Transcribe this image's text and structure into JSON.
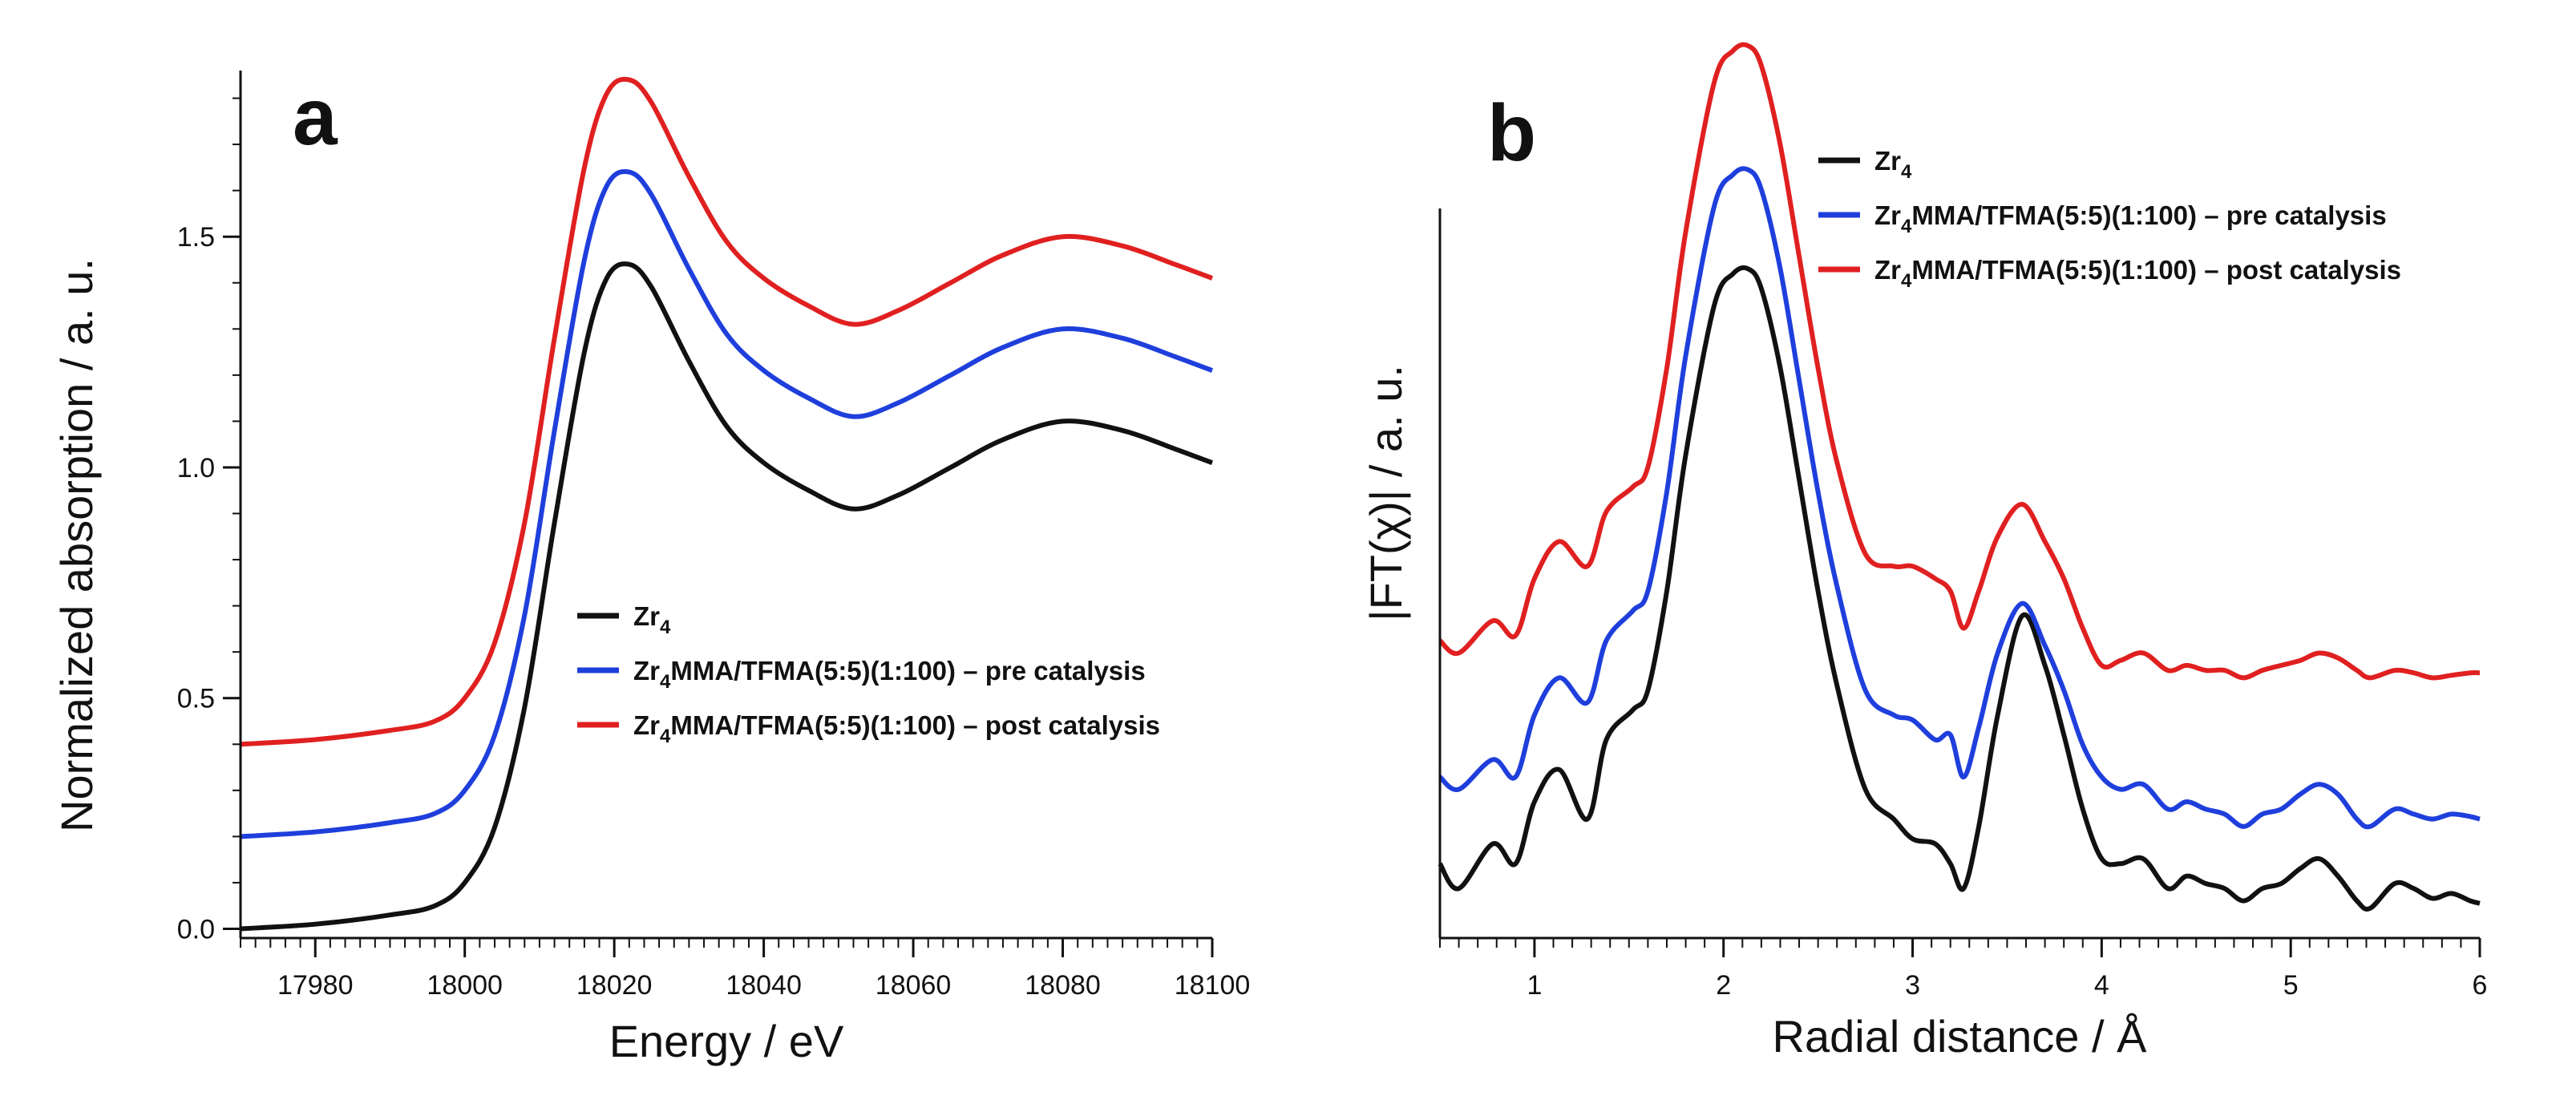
{
  "chart_data": [
    {
      "type": "line",
      "panel_label": "a",
      "xlabel": "Energy / eV",
      "ylabel": "Normalized absorption / a. u.",
      "xlim": [
        17970,
        18100
      ],
      "ylim": [
        -0.02,
        1.86
      ],
      "xticks": [
        17980,
        18000,
        18020,
        18040,
        18060,
        18080,
        18100
      ],
      "yticks": [
        0.0,
        0.5,
        1.0,
        1.5
      ],
      "ytick_labels": [
        "0.0",
        "0.5",
        "1.0",
        "1.5"
      ],
      "legend_position": "center-right",
      "series": [
        {
          "name": "Zr4",
          "label_main": "Zr",
          "label_sub": "4",
          "label_rest": "",
          "color": "#111111",
          "x": [
            17970,
            17980,
            17990,
            17996,
            18000,
            18004,
            18008,
            18012,
            18016,
            18019,
            18022,
            18025,
            18030,
            18035,
            18040,
            18046,
            18052,
            18058,
            18065,
            18072,
            18080,
            18088,
            18095,
            18100
          ],
          "y": [
            0.0,
            0.01,
            0.03,
            0.05,
            0.1,
            0.22,
            0.48,
            0.88,
            1.25,
            1.41,
            1.44,
            1.39,
            1.23,
            1.09,
            1.01,
            0.95,
            0.91,
            0.94,
            1.0,
            1.06,
            1.1,
            1.08,
            1.04,
            1.01
          ]
        },
        {
          "name": "Zr4MMA/TFMA(5:5)(1:100) – pre catalysis",
          "label_main": "Zr",
          "label_sub": "4",
          "label_rest": "MMA/TFMA(5:5)(1:100) – pre catalysis",
          "color": "#1f3fdc",
          "x": [
            17970,
            17980,
            17990,
            17996,
            18000,
            18004,
            18008,
            18012,
            18016,
            18019,
            18022,
            18025,
            18030,
            18035,
            18040,
            18046,
            18052,
            18058,
            18065,
            18072,
            18080,
            18088,
            18095,
            18100
          ],
          "y": [
            0.2,
            0.21,
            0.23,
            0.25,
            0.3,
            0.42,
            0.68,
            1.08,
            1.45,
            1.61,
            1.64,
            1.59,
            1.43,
            1.29,
            1.21,
            1.15,
            1.11,
            1.14,
            1.2,
            1.26,
            1.3,
            1.28,
            1.24,
            1.21
          ]
        },
        {
          "name": "Zr4MMA/TFMA(5:5)(1:100) – post catalysis",
          "label_main": "Zr",
          "label_sub": "4",
          "label_rest": "MMA/TFMA(5:5)(1:100) – post catalysis",
          "color": "#e02020",
          "x": [
            17970,
            17980,
            17990,
            17996,
            18000,
            18004,
            18008,
            18012,
            18016,
            18019,
            18022,
            18025,
            18030,
            18035,
            18040,
            18046,
            18052,
            18058,
            18065,
            18072,
            18080,
            18088,
            18095,
            18100
          ],
          "y": [
            0.4,
            0.41,
            0.43,
            0.45,
            0.5,
            0.62,
            0.88,
            1.28,
            1.65,
            1.81,
            1.84,
            1.79,
            1.63,
            1.49,
            1.41,
            1.35,
            1.31,
            1.34,
            1.4,
            1.46,
            1.5,
            1.48,
            1.44,
            1.41
          ]
        }
      ]
    },
    {
      "type": "line",
      "panel_label": "b",
      "xlabel": "Radial distance / Å",
      "ylabel": "|FT(χ)| / a. u.",
      "xlim": [
        0.5,
        6.0
      ],
      "ylim": [
        -0.1,
        3.4
      ],
      "xticks": [
        1,
        2,
        3,
        4,
        5,
        6
      ],
      "xtick_labels": [
        "1",
        "2",
        "3",
        "4",
        "5",
        "6"
      ],
      "legend_position": "top-right",
      "series": [
        {
          "name": "Zr4",
          "label_main": "Zr",
          "label_sub": "4",
          "label_rest": "",
          "color": "#111111",
          "x": [
            0.5,
            0.6,
            0.78,
            0.9,
            1.0,
            1.13,
            1.28,
            1.38,
            1.52,
            1.6,
            1.7,
            1.8,
            1.95,
            2.05,
            2.13,
            2.2,
            2.3,
            2.4,
            2.5,
            2.6,
            2.75,
            2.9,
            3.0,
            3.12,
            3.2,
            3.27,
            3.35,
            3.45,
            3.58,
            3.7,
            3.8,
            3.9,
            4.0,
            4.1,
            4.22,
            4.35,
            4.45,
            4.55,
            4.65,
            4.75,
            4.85,
            4.95,
            5.05,
            5.15,
            5.25,
            5.35,
            5.42,
            5.55,
            5.65,
            5.75,
            5.85,
            5.95,
            6.0
          ],
          "y": [
            0.2,
            0.1,
            0.28,
            0.2,
            0.45,
            0.58,
            0.38,
            0.7,
            0.82,
            0.9,
            1.3,
            1.85,
            2.45,
            2.58,
            2.6,
            2.52,
            2.2,
            1.75,
            1.3,
            0.92,
            0.5,
            0.38,
            0.3,
            0.28,
            0.2,
            0.1,
            0.35,
            0.8,
            1.2,
            1.0,
            0.72,
            0.42,
            0.22,
            0.2,
            0.22,
            0.1,
            0.15,
            0.12,
            0.1,
            0.05,
            0.1,
            0.12,
            0.18,
            0.22,
            0.15,
            0.05,
            0.02,
            0.12,
            0.1,
            0.06,
            0.08,
            0.05,
            0.04
          ]
        },
        {
          "name": "Zr4MMA/TFMA(5:5)(1:100) – pre catalysis",
          "label_main": "Zr",
          "label_sub": "4",
          "label_rest": "MMA/TFMA(5:5)(1:100) – pre catalysis",
          "color": "#1f3fdc",
          "x": [
            0.5,
            0.6,
            0.78,
            0.9,
            1.0,
            1.13,
            1.28,
            1.38,
            1.52,
            1.6,
            1.7,
            1.8,
            1.95,
            2.05,
            2.13,
            2.2,
            2.3,
            2.4,
            2.5,
            2.6,
            2.75,
            2.9,
            3.0,
            3.12,
            3.2,
            3.27,
            3.35,
            3.45,
            3.58,
            3.7,
            3.8,
            3.9,
            4.0,
            4.1,
            4.22,
            4.35,
            4.45,
            4.55,
            4.65,
            4.75,
            4.85,
            4.95,
            5.05,
            5.15,
            5.25,
            5.35,
            5.42,
            5.55,
            5.65,
            5.75,
            5.85,
            5.95,
            6.0
          ],
          "y": [
            0.55,
            0.5,
            0.62,
            0.55,
            0.8,
            0.95,
            0.85,
            1.1,
            1.22,
            1.3,
            1.7,
            2.25,
            2.85,
            2.98,
            3.0,
            2.92,
            2.6,
            2.15,
            1.7,
            1.32,
            0.9,
            0.8,
            0.78,
            0.7,
            0.72,
            0.55,
            0.75,
            1.05,
            1.25,
            1.08,
            0.9,
            0.68,
            0.55,
            0.5,
            0.52,
            0.42,
            0.45,
            0.42,
            0.4,
            0.35,
            0.4,
            0.42,
            0.48,
            0.52,
            0.48,
            0.38,
            0.35,
            0.42,
            0.4,
            0.38,
            0.4,
            0.39,
            0.38
          ]
        },
        {
          "name": "Zr4MMA/TFMA(5:5)(1:100) – post catalysis",
          "label_main": "Zr",
          "label_sub": "4",
          "label_rest": "MMA/TFMA(5:5)(1:100) – post catalysis",
          "color": "#e02020",
          "x": [
            0.5,
            0.6,
            0.78,
            0.9,
            1.0,
            1.13,
            1.28,
            1.38,
            1.52,
            1.6,
            1.7,
            1.8,
            1.95,
            2.05,
            2.13,
            2.2,
            2.3,
            2.4,
            2.5,
            2.6,
            2.75,
            2.9,
            3.0,
            3.12,
            3.2,
            3.27,
            3.35,
            3.45,
            3.58,
            3.7,
            3.8,
            3.9,
            4.0,
            4.1,
            4.22,
            4.35,
            4.45,
            4.55,
            4.65,
            4.75,
            4.85,
            4.95,
            5.05,
            5.15,
            5.25,
            5.35,
            5.42,
            5.55,
            5.65,
            5.75,
            5.85,
            5.95,
            6.0
          ],
          "y": [
            1.1,
            1.05,
            1.18,
            1.12,
            1.35,
            1.5,
            1.4,
            1.62,
            1.72,
            1.8,
            2.2,
            2.75,
            3.35,
            3.48,
            3.5,
            3.42,
            3.1,
            2.65,
            2.2,
            1.82,
            1.45,
            1.4,
            1.4,
            1.35,
            1.3,
            1.15,
            1.3,
            1.52,
            1.65,
            1.5,
            1.35,
            1.15,
            1.0,
            1.02,
            1.05,
            0.98,
            1.0,
            0.98,
            0.98,
            0.95,
            0.98,
            1.0,
            1.02,
            1.05,
            1.03,
            0.98,
            0.95,
            0.98,
            0.97,
            0.95,
            0.96,
            0.97,
            0.97
          ]
        }
      ]
    }
  ]
}
